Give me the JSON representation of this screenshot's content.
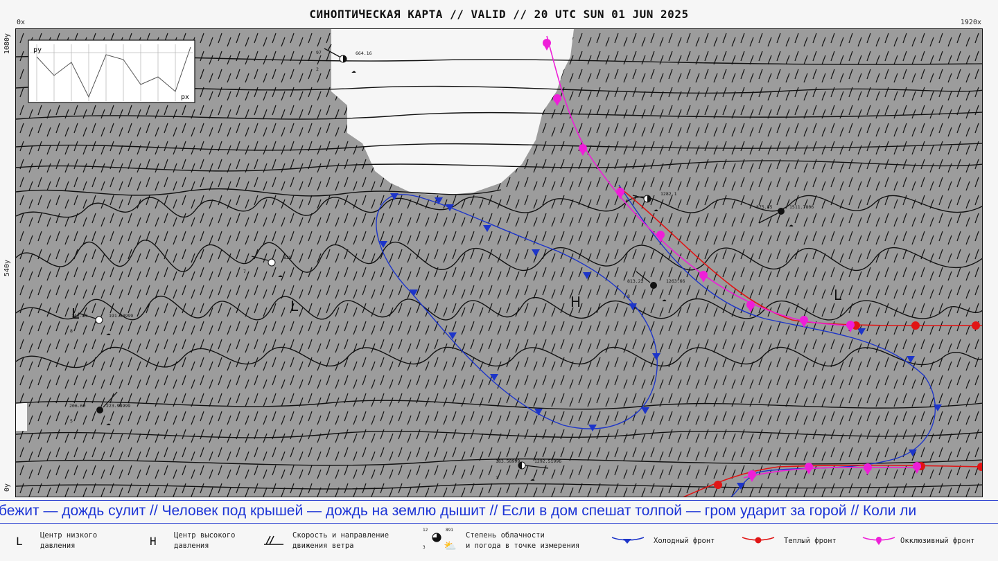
{
  "header": {
    "title": "СИНОПТИЧЕСКАЯ КАРТА // VALID // 20 UTC SUN 01 JUN 2025",
    "corner_top_left": "0x",
    "corner_top_right": "1920x",
    "axis_top": "1080y",
    "axis_mid": "540y",
    "axis_bottom": "0y"
  },
  "inset": {
    "ylabel": "py",
    "xlabel": "px"
  },
  "map": {
    "centers": [
      {
        "label": "L"
      },
      {
        "label": "L"
      },
      {
        "label": "L"
      },
      {
        "label": "H"
      }
    ],
    "stations": [
      {
        "left": "97",
        "right": "664.16",
        "bottom": "2"
      },
      {
        "left": "",
        "right": "828",
        "bottom": "7"
      },
      {
        "left": "142.89",
        "right": "191.98999",
        "bottom": "8"
      },
      {
        "left": "206.60",
        "right": "223.98999",
        "bottom": "5"
      },
      {
        "left": "",
        "right": "1282.1",
        "bottom": ""
      },
      {
        "left": "813.22",
        "right": "1263.66",
        "bottom": "8"
      },
      {
        "left": "875.85",
        "right": "1511.7806",
        "bottom": ""
      },
      {
        "left": "183.58999",
        "right": "1292.51996",
        "bottom": "1"
      }
    ]
  },
  "ticker": {
    "text": "бежит — дождь сулит // Человек под крышей — дождь на землю дышит // Если в дом спешат толпой — гром ударит за горой // Коли ли"
  },
  "legend": {
    "low_symbol": "L",
    "low_label_1": "Центр низкого",
    "low_label_2": "давления",
    "high_symbol": "H",
    "high_label_1": "Центр высокого",
    "high_label_2": "давления",
    "wind_label_1": "Скорость и направление",
    "wind_label_2": "движения ветра",
    "station_num_top": "12",
    "station_num_right": "891",
    "station_num_bottom": "3",
    "cloud_label_1": "Степень облачности",
    "cloud_label_2": "и погода в точке измерения",
    "cold_label": "Холодный фронт",
    "warm_label": "Теплый фронт",
    "occluded_label": "Окклюзивный фронт"
  },
  "colors": {
    "cold_front": "#1d35c9",
    "warm_front": "#e01515",
    "occluded_front": "#ee1fd8",
    "precip_area": "#9c9c9c",
    "ticker_text": "#1d35d6"
  }
}
